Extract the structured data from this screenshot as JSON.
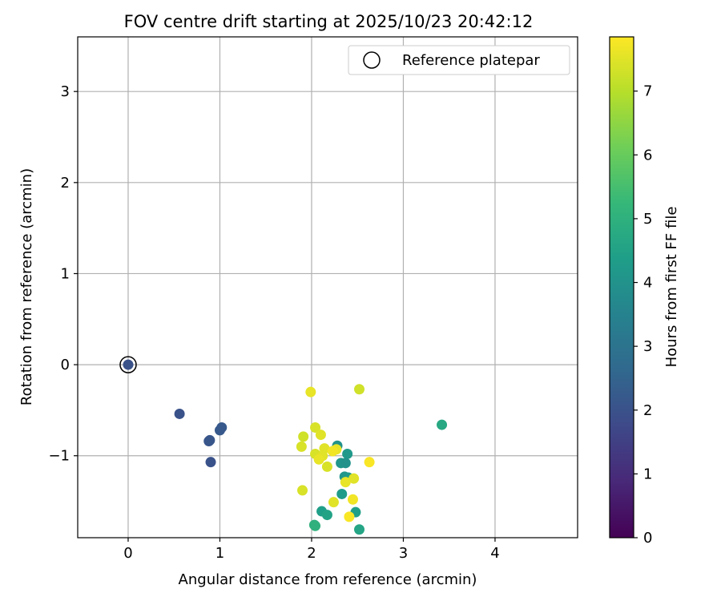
{
  "chart_data": {
    "type": "scatter",
    "title": "FOV centre drift starting at 2025/10/23 20:42:12",
    "xlabel": "Angular distance from reference (arcmin)",
    "ylabel": "Rotation from reference (arcmin)",
    "xlim": [
      -0.55,
      4.9
    ],
    "ylim": [
      -1.9,
      3.6
    ],
    "xticks": [
      0,
      1,
      2,
      3,
      4
    ],
    "yticks": [
      -1,
      0,
      1,
      2,
      3
    ],
    "grid": true,
    "legend": {
      "placement": "top-right",
      "label": "Reference platepar"
    },
    "reference_point": {
      "x": 0.0,
      "y": 0.0
    },
    "colorbar": {
      "label": "Hours from first FF file",
      "range": [
        0,
        7.85
      ],
      "ticks": [
        0,
        1,
        2,
        3,
        4,
        5,
        6,
        7
      ],
      "colormap": "viridis"
    },
    "colormap_stops": [
      "#440154",
      "#482878",
      "#3e4989",
      "#31688e",
      "#26828e",
      "#1f9e89",
      "#35b779",
      "#6ece58",
      "#b5de2b",
      "#fde725"
    ],
    "points": [
      {
        "x": 0.0,
        "y": 0.0,
        "h": 2.0
      },
      {
        "x": 0.56,
        "y": -0.54,
        "h": 2.0
      },
      {
        "x": 0.88,
        "y": -0.84,
        "h": 2.1
      },
      {
        "x": 0.89,
        "y": -0.83,
        "h": 2.1
      },
      {
        "x": 1.0,
        "y": -0.72,
        "h": 2.2
      },
      {
        "x": 1.02,
        "y": -0.69,
        "h": 2.2
      },
      {
        "x": 0.9,
        "y": -1.07,
        "h": 2.0
      },
      {
        "x": 3.42,
        "y": -0.66,
        "h": 4.7
      },
      {
        "x": 2.28,
        "y": -0.89,
        "h": 4.0
      },
      {
        "x": 2.39,
        "y": -0.98,
        "h": 4.2
      },
      {
        "x": 2.32,
        "y": -1.08,
        "h": 4.1
      },
      {
        "x": 2.37,
        "y": -1.08,
        "h": 4.0
      },
      {
        "x": 2.36,
        "y": -1.23,
        "h": 4.1
      },
      {
        "x": 2.4,
        "y": -1.24,
        "h": 4.2
      },
      {
        "x": 2.33,
        "y": -1.42,
        "h": 4.3
      },
      {
        "x": 2.11,
        "y": -1.61,
        "h": 4.4
      },
      {
        "x": 2.17,
        "y": -1.65,
        "h": 4.5
      },
      {
        "x": 2.48,
        "y": -1.62,
        "h": 4.4
      },
      {
        "x": 2.03,
        "y": -1.76,
        "h": 5.0
      },
      {
        "x": 2.04,
        "y": -1.77,
        "h": 5.0
      },
      {
        "x": 2.52,
        "y": -1.81,
        "h": 4.6
      },
      {
        "x": 1.99,
        "y": -0.3,
        "h": 7.6
      },
      {
        "x": 2.52,
        "y": -0.27,
        "h": 7.3
      },
      {
        "x": 2.04,
        "y": -0.69,
        "h": 7.4
      },
      {
        "x": 2.1,
        "y": -0.77,
        "h": 7.5
      },
      {
        "x": 1.91,
        "y": -0.79,
        "h": 7.3
      },
      {
        "x": 1.89,
        "y": -0.9,
        "h": 7.4
      },
      {
        "x": 2.14,
        "y": -0.92,
        "h": 7.5
      },
      {
        "x": 2.27,
        "y": -0.93,
        "h": 7.6
      },
      {
        "x": 2.23,
        "y": -0.95,
        "h": 7.7
      },
      {
        "x": 2.04,
        "y": -0.98,
        "h": 7.4
      },
      {
        "x": 2.12,
        "y": -1.0,
        "h": 7.5
      },
      {
        "x": 2.08,
        "y": -1.04,
        "h": 7.6
      },
      {
        "x": 2.17,
        "y": -1.12,
        "h": 7.4
      },
      {
        "x": 2.63,
        "y": -1.07,
        "h": 7.8
      },
      {
        "x": 2.46,
        "y": -1.25,
        "h": 7.5
      },
      {
        "x": 2.37,
        "y": -1.29,
        "h": 7.6
      },
      {
        "x": 1.9,
        "y": -1.38,
        "h": 7.4
      },
      {
        "x": 2.45,
        "y": -1.48,
        "h": 7.7
      },
      {
        "x": 2.24,
        "y": -1.51,
        "h": 7.5
      },
      {
        "x": 2.41,
        "y": -1.67,
        "h": 7.8
      }
    ]
  }
}
